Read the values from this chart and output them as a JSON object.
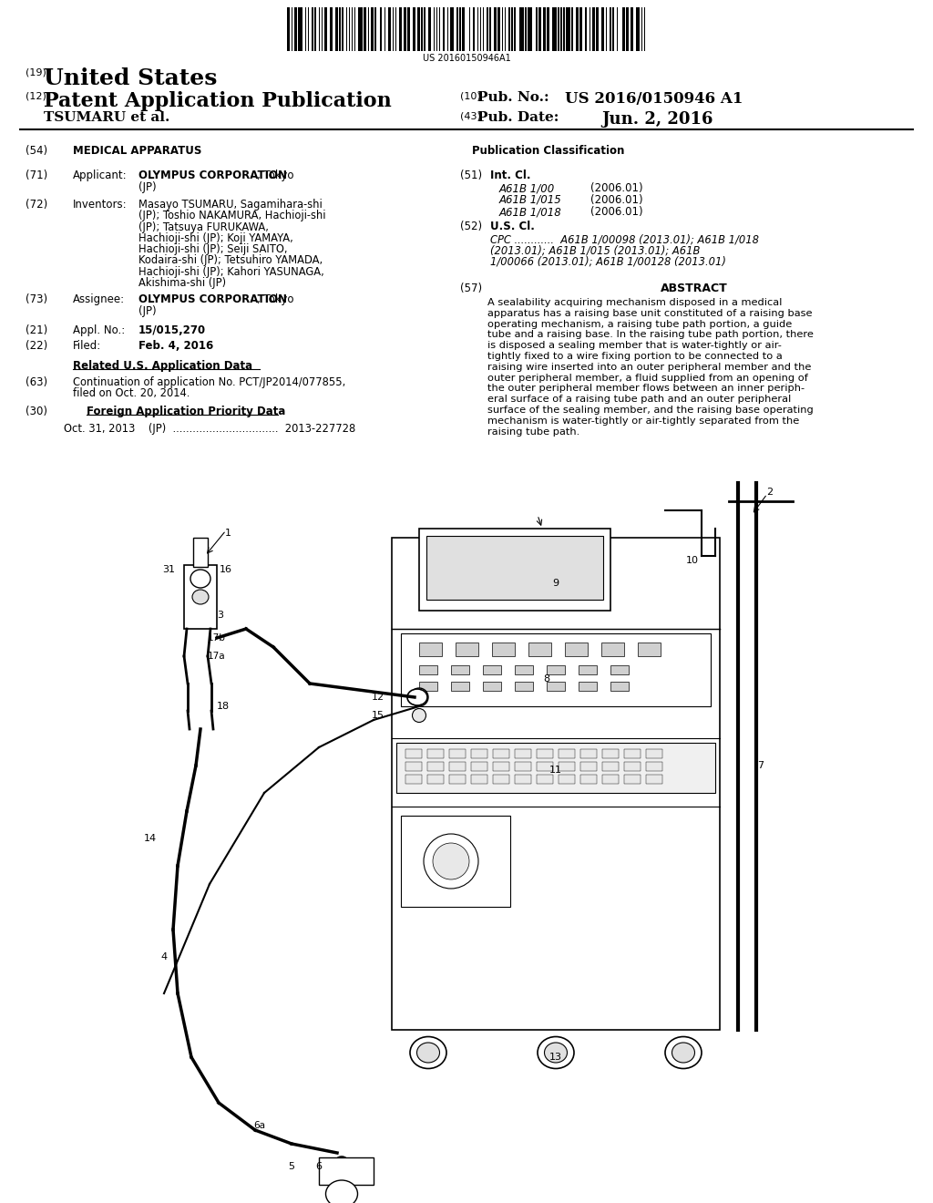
{
  "background_color": "#ffffff",
  "barcode_text": "US 20160150946A1",
  "header_19": "(19)",
  "header_19_text": "United States",
  "header_12": "(12)",
  "header_12_text": "Patent Application Publication",
  "header_10": "(10)",
  "header_10_pubno_label": "Pub. No.:",
  "header_10_pubno": "US 2016/0150946 A1",
  "header_author": "TSUMARU et al.",
  "header_43": "(43)",
  "header_43_date_label": "Pub. Date:",
  "header_43_date": "Jun. 2, 2016",
  "s54_label": "(54)",
  "s54_text": "MEDICAL APPARATUS",
  "pub_class_header": "Publication Classification",
  "s71_label": "(71)",
  "s71_cat": "Applicant:",
  "s71_corp": "OLYMPUS CORPORATION",
  "s71_city": ", Tokyo",
  "s71_country": "(JP)",
  "s72_label": "(72)",
  "s72_cat": "Inventors:",
  "s72_lines": [
    "Masayo TSUMARU, Sagamihara-shi",
    "(JP); Toshio NAKAMURA, Hachioji-shi",
    "(JP); Tatsuya FURUKAWA,",
    "Hachioji-shi (JP); Koji YAMAYA,",
    "Hachioji-shi (JP); Seiji SAITO,",
    "Kodaira-shi (JP); Tetsuhiro YAMADA,",
    "Hachioji-shi (JP); Kahori YASUNAGA,",
    "Akishima-shi (JP)"
  ],
  "s73_label": "(73)",
  "s73_cat": "Assignee:",
  "s73_corp": "OLYMPUS CORPORATION",
  "s73_city": ", Tokyo",
  "s73_country": "(JP)",
  "s21_label": "(21)",
  "s21_cat": "Appl. No.:",
  "s21_val": "15/015,270",
  "s22_label": "(22)",
  "s22_cat": "Filed:",
  "s22_val": "Feb. 4, 2016",
  "related_title": "Related U.S. Application Data",
  "s63_label": "(63)",
  "s63_line1": "Continuation of application No. PCT/JP2014/077855,",
  "s63_line2": "filed on Oct. 20, 2014.",
  "s30_label": "(30)",
  "s30_title": "Foreign Application Priority Data",
  "s30_body": "Oct. 31, 2013    (JP)  ................................  2013-227728",
  "s51_label": "(51)",
  "s51_cat": "Int. Cl.",
  "s51_codes": [
    "A61B 1/00",
    "A61B 1/015",
    "A61B 1/018"
  ],
  "s51_dates": [
    "(2006.01)",
    "(2006.01)",
    "(2006.01)"
  ],
  "s52_label": "(52)",
  "s52_cat": "U.S. Cl.",
  "s52_lines": [
    "CPC ............  A61B 1/00098 (2013.01); A61B 1/018",
    "(2013.01); A61B 1/015 (2013.01); A61B",
    "1/00066 (2013.01); A61B 1/00128 (2013.01)"
  ],
  "s57_label": "(57)",
  "s57_cat": "ABSTRACT",
  "abstract_lines": [
    "A sealability acquiring mechanism disposed in a medical",
    "apparatus has a raising base unit constituted of a raising base",
    "operating mechanism, a raising tube path portion, a guide",
    "tube and a raising base. In the raising tube path portion, there",
    "is disposed a sealing member that is water-tightly or air-",
    "tightly fixed to a wire fixing portion to be connected to a",
    "raising wire inserted into an outer peripheral member and the",
    "outer peripheral member, a fluid supplied from an opening of",
    "the outer peripheral member flows between an inner periph-",
    "eral surface of a raising tube path and an outer peripheral",
    "surface of the sealing member, and the raising base operating",
    "mechanism is water-tightly or air-tightly separated from the",
    "raising tube path."
  ]
}
